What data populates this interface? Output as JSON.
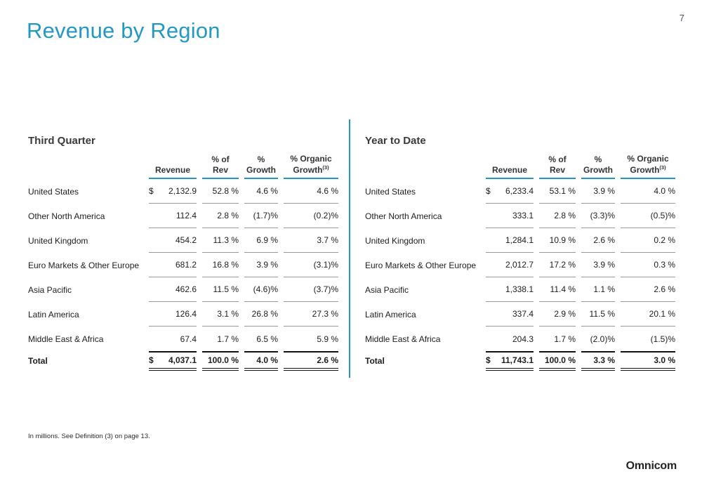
{
  "slide": {
    "page_number": "7",
    "title": "Revenue by Region",
    "footnote": "In millions.  See Definition (3) on page 13.",
    "logo_text": "Omnicom"
  },
  "colors": {
    "accent_teal": "#2498c2",
    "row_divider_gray": "#999999",
    "total_line_black": "#111111",
    "page_number_navy": "#4d4d70"
  },
  "tables": [
    {
      "title": "Third Quarter",
      "headers": {
        "revenue": "Revenue",
        "pct_of_rev": [
          "% of",
          "Rev"
        ],
        "growth": [
          "%",
          "Growth"
        ],
        "organic": [
          "% Organic",
          "Growth"
        ],
        "organic_sup": "(3)"
      },
      "rows": [
        {
          "label": "United States",
          "currency": "$",
          "revenue": "2,132.9",
          "pct_of_rev": "52.8 %",
          "growth": "4.6 %",
          "organic": "4.6 %"
        },
        {
          "label": "Other North America",
          "revenue": "112.4",
          "pct_of_rev": "2.8 %",
          "growth": "(1.7)%",
          "organic": "(0.2)%"
        },
        {
          "label": "United Kingdom",
          "revenue": "454.2",
          "pct_of_rev": "11.3 %",
          "growth": "6.9 %",
          "organic": "3.7 %"
        },
        {
          "label": "Euro Markets & Other Europe",
          "revenue": "681.2",
          "pct_of_rev": "16.8 %",
          "growth": "3.9 %",
          "organic": "(3.1)%"
        },
        {
          "label": "Asia Pacific",
          "revenue": "462.6",
          "pct_of_rev": "11.5 %",
          "growth": "(4.6)%",
          "organic": "(3.7)%"
        },
        {
          "label": "Latin America",
          "revenue": "126.4",
          "pct_of_rev": "3.1 %",
          "growth": "26.8 %",
          "organic": "27.3 %"
        },
        {
          "label": "Middle East & Africa",
          "revenue": "67.4",
          "pct_of_rev": "1.7 %",
          "growth": "6.5 %",
          "organic": "5.9 %"
        },
        {
          "label": "Total",
          "currency": "$",
          "revenue": "4,037.1",
          "pct_of_rev": "100.0 %",
          "growth": "4.0 %",
          "organic": "2.6 %",
          "is_total": true
        }
      ]
    },
    {
      "title": "Year to Date",
      "headers": {
        "revenue": "Revenue",
        "pct_of_rev": [
          "% of",
          "Rev"
        ],
        "growth": [
          "%",
          "Growth"
        ],
        "organic": [
          "% Organic",
          "Growth"
        ],
        "organic_sup": "(3)"
      },
      "rows": [
        {
          "label": "United States",
          "currency": "$",
          "revenue": "6,233.4",
          "pct_of_rev": "53.1 %",
          "growth": "3.9 %",
          "organic": "4.0 %"
        },
        {
          "label": "Other North America",
          "revenue": "333.1",
          "pct_of_rev": "2.8 %",
          "growth": "(3.3)%",
          "organic": "(0.5)%"
        },
        {
          "label": "United Kingdom",
          "revenue": "1,284.1",
          "pct_of_rev": "10.9 %",
          "growth": "2.6 %",
          "organic": "0.2 %"
        },
        {
          "label": "Euro Markets & Other Europe",
          "revenue": "2,012.7",
          "pct_of_rev": "17.2 %",
          "growth": "3.9 %",
          "organic": "0.3 %"
        },
        {
          "label": "Asia Pacific",
          "revenue": "1,338.1",
          "pct_of_rev": "11.4 %",
          "growth": "1.1 %",
          "organic": "2.6 %"
        },
        {
          "label": "Latin America",
          "revenue": "337.4",
          "pct_of_rev": "2.9 %",
          "growth": "11.5 %",
          "organic": "20.1 %"
        },
        {
          "label": "Middle East & Africa",
          "revenue": "204.3",
          "pct_of_rev": "1.7 %",
          "growth": "(2.0)%",
          "organic": "(1.5)%"
        },
        {
          "label": "Total",
          "currency": "$",
          "revenue": "11,743.1",
          "pct_of_rev": "100.0 %",
          "growth": "3.3 %",
          "organic": "3.0 %",
          "is_total": true
        }
      ]
    }
  ]
}
